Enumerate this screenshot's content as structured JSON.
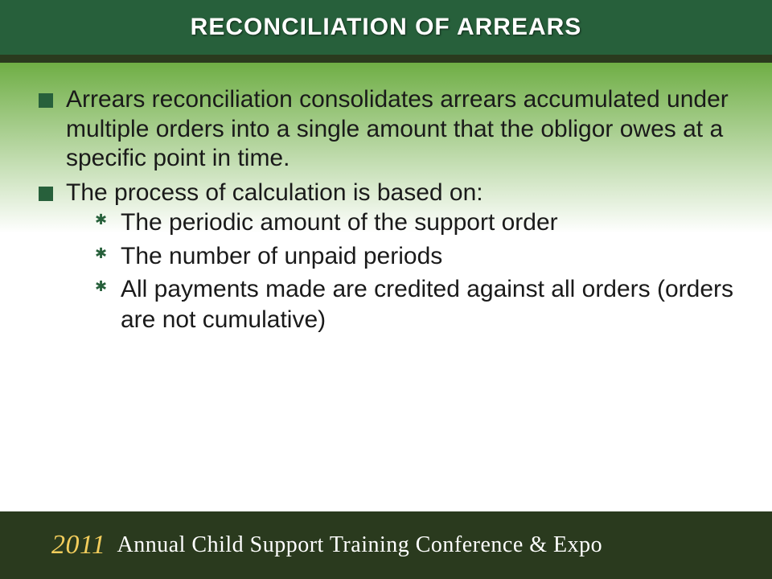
{
  "header": {
    "title": "RECONCILIATION OF ARREARS",
    "bg_color": "#27603b",
    "text_color": "#ffffff",
    "title_fontsize": 30
  },
  "body": {
    "gradient_top": "#6fae45",
    "gradient_bottom": "#ffffff",
    "text_color": "#1a1a1a",
    "bullet_color": "#27603b",
    "fontsize_l1": 30,
    "fontsize_l2": 30,
    "bullets": [
      {
        "text": "Arrears reconciliation consolidates arrears accumulated under multiple orders into a single amount that the obligor owes at a specific point in time.",
        "children": []
      },
      {
        "text": "The process of calculation is based on:",
        "children": [
          {
            "text": "The periodic amount of the support order"
          },
          {
            "text": "The number of unpaid periods"
          },
          {
            "text": "All payments made are credited against all orders (orders are not cumulative)"
          }
        ]
      }
    ]
  },
  "footer": {
    "bg_color": "#2a3a1e",
    "year": "2011",
    "year_color": "#f2cd5c",
    "text": "Annual Child Support Training Conference & Expo",
    "text_color": "#ffffff"
  }
}
